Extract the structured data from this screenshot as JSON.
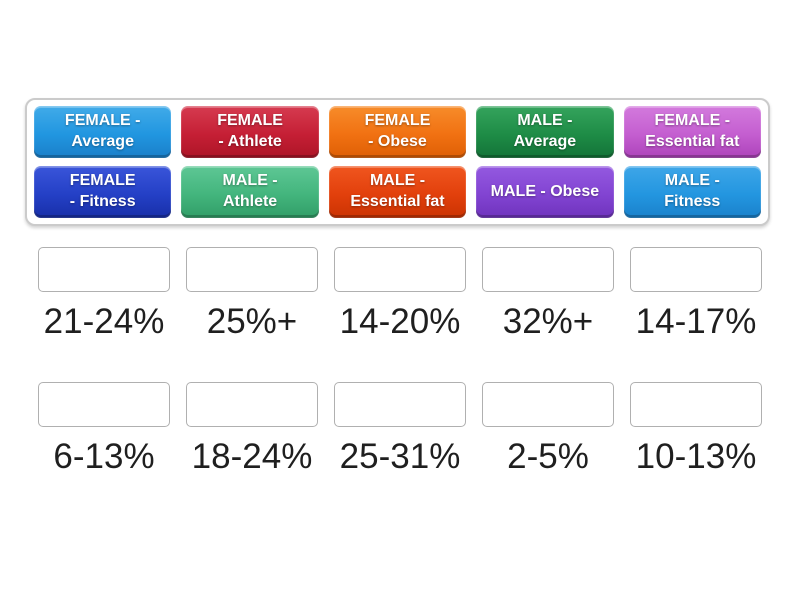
{
  "tile_bank": {
    "card_border_color": "#cbcbcb",
    "tile_text_color": "#ffffff",
    "tiles": [
      {
        "id": "female-average",
        "label": "FEMALE -\nAverage",
        "color": "#2196e0",
        "background": "linear-gradient(180deg, #41abe9 0%, #2196e0 55%, #1a7fc9 100%)"
      },
      {
        "id": "female-athlete",
        "label": "FEMALE\n- Athlete",
        "color": "#c51f35",
        "background": "linear-gradient(180deg, #d63b50 0%, #c51f35 55%, #ad1527 100%)"
      },
      {
        "id": "female-obese",
        "label": "FEMALE\n- Obese",
        "color": "#f17112",
        "background": "linear-gradient(180deg, #f78c2a 0%, #f17112 55%, #de5f05 100%)"
      },
      {
        "id": "male-average",
        "label": "MALE -\nAverage",
        "color": "#1e8c46",
        "background": "linear-gradient(180deg, #35a45d 0%, #1e8c46 55%, #137338 100%)"
      },
      {
        "id": "female-essential-fat",
        "label": "FEMALE -\nEssential fat",
        "color": "#c45ed0",
        "background": "linear-gradient(180deg, #d37add 0%, #c45ed0 55%, #ad43ba 100%)"
      },
      {
        "id": "female-fitness",
        "label": "FEMALE\n- Fitness",
        "color": "#2440c6",
        "background": "linear-gradient(180deg, #3a55da 0%, #2440c6 55%, #182fa8 100%)"
      },
      {
        "id": "male-athlete",
        "label": "MALE -\nAthlete",
        "color": "#43b57d",
        "background": "linear-gradient(180deg, #5ec795 0%, #43b57d 55%, #319e67 100%)"
      },
      {
        "id": "male-essential-fat",
        "label": "MALE -\nEssential fat",
        "color": "#e2400c",
        "background": "linear-gradient(180deg, #f0561f 0%, #e2400c 55%, #cb3302 100%)"
      },
      {
        "id": "male-obese",
        "label": "MALE - Obese",
        "color": "#8244d2",
        "background": "linear-gradient(180deg, #9459e0 0%, #8244d2 55%, #6f33bd 100%)"
      },
      {
        "id": "male-fitness",
        "label": "MALE -\nFitness",
        "color": "#2396e0",
        "background": "linear-gradient(180deg, #3ea6e8 0%, #2396e0 55%, #1a81cb 100%)"
      }
    ]
  },
  "answers": {
    "label_text_color": "#1f1f1f",
    "slot_border_color": "#b0b0b0",
    "row1": [
      {
        "label": "21-24%"
      },
      {
        "label": "25%+"
      },
      {
        "label": "14-20%"
      },
      {
        "label": "32%+"
      },
      {
        "label": "14-17%"
      }
    ],
    "row2": [
      {
        "label": "6-13%"
      },
      {
        "label": "18-24%"
      },
      {
        "label": "25-31%"
      },
      {
        "label": "2-5%"
      },
      {
        "label": "10-13%"
      }
    ]
  }
}
